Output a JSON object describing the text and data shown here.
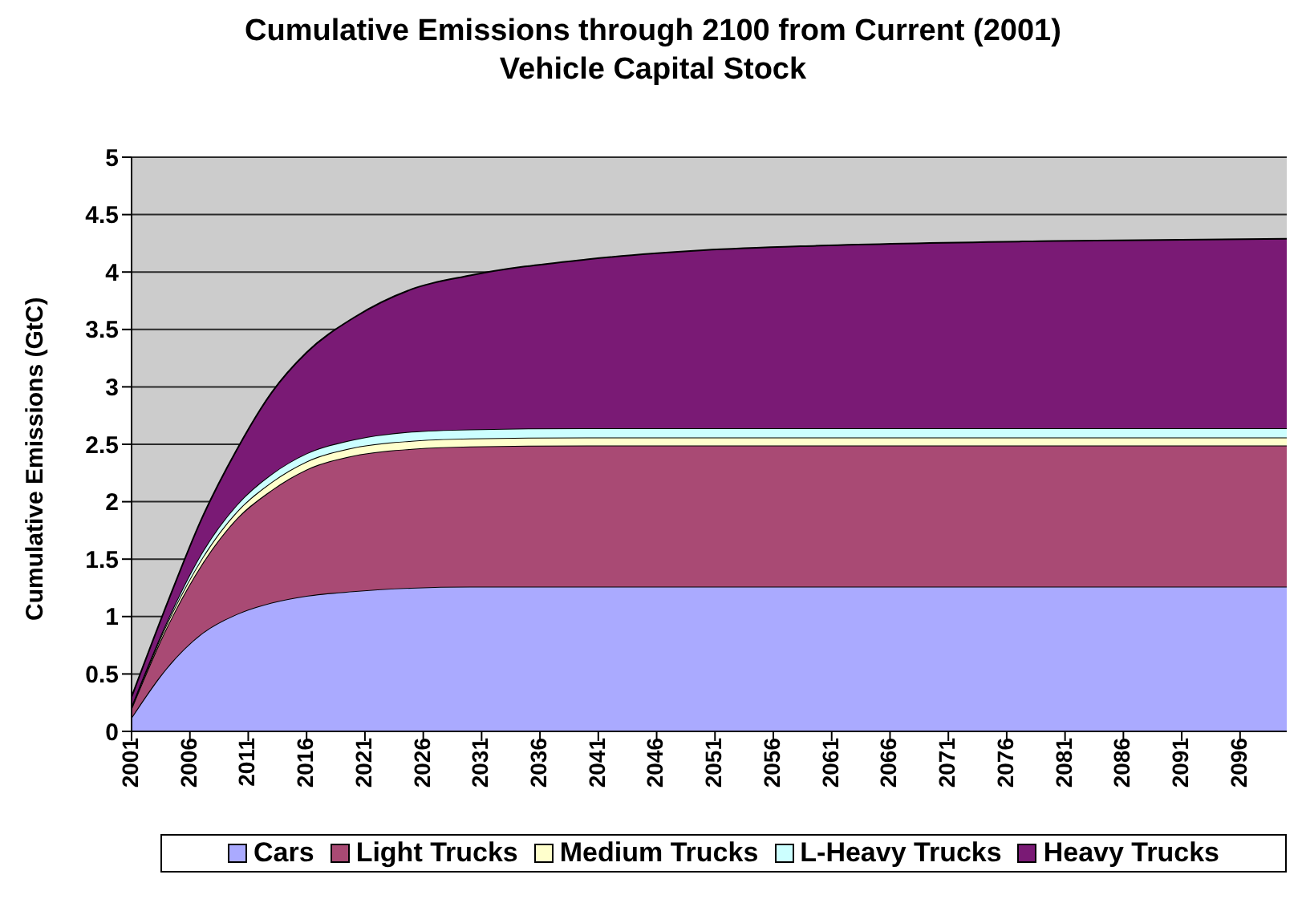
{
  "chart_data": {
    "type": "area",
    "stacked": true,
    "title": "Cumulative Emissions through 2100 from Current (2001) Vehicle Capital Stock",
    "ylabel": "Cumulative Emissions (GtC)",
    "x": [
      2001,
      2004,
      2007,
      2010,
      2013,
      2016,
      2020,
      2025,
      2030,
      2040,
      2050,
      2060,
      2080,
      2100
    ],
    "series": [
      {
        "name": "Cars",
        "color": "#aaaaff",
        "values": [
          0.12,
          0.55,
          0.85,
          1.02,
          1.12,
          1.18,
          1.22,
          1.25,
          1.26,
          1.26,
          1.26,
          1.26,
          1.26,
          1.26
        ]
      },
      {
        "name": "Light Trucks",
        "color": "#a94a74",
        "values": [
          0.08,
          0.35,
          0.6,
          0.83,
          0.98,
          1.1,
          1.18,
          1.21,
          1.22,
          1.23,
          1.23,
          1.23,
          1.23,
          1.23
        ]
      },
      {
        "name": "Medium Trucks",
        "color": "#ffffcc",
        "values": [
          0.01,
          0.03,
          0.05,
          0.06,
          0.07,
          0.07,
          0.07,
          0.07,
          0.07,
          0.07,
          0.07,
          0.07,
          0.07,
          0.07
        ]
      },
      {
        "name": "L-Heavy Trucks",
        "color": "#ccffff",
        "values": [
          0.01,
          0.02,
          0.05,
          0.06,
          0.07,
          0.07,
          0.07,
          0.08,
          0.08,
          0.08,
          0.08,
          0.08,
          0.08,
          0.08
        ]
      },
      {
        "name": "Heavy Trucks",
        "color": "#7a1a75",
        "values": [
          0.08,
          0.15,
          0.3,
          0.48,
          0.71,
          0.88,
          1.06,
          1.24,
          1.34,
          1.47,
          1.55,
          1.59,
          1.63,
          1.65
        ]
      }
    ],
    "xlim": [
      2001,
      2100
    ],
    "xticks": [
      2001,
      2006,
      2011,
      2016,
      2021,
      2026,
      2031,
      2036,
      2041,
      2046,
      2051,
      2056,
      2061,
      2066,
      2071,
      2076,
      2081,
      2086,
      2091,
      2096
    ],
    "ylim": [
      0,
      5
    ],
    "yticks": [
      0,
      0.5,
      1,
      1.5,
      2,
      2.5,
      3,
      3.5,
      4,
      4.5,
      5
    ],
    "grid": "y",
    "legend": "bottom"
  }
}
